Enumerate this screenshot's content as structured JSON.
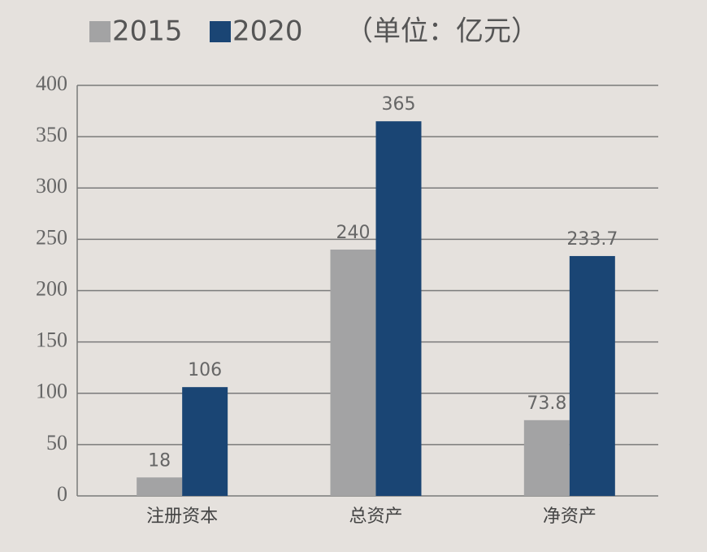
{
  "chart_data": {
    "type": "bar",
    "unit": "（单位：亿元）",
    "categories": [
      "注册资本",
      "总资产",
      "净资产"
    ],
    "series": [
      {
        "name": "2015",
        "color": "#a3a3a4",
        "values": [
          18,
          240,
          73.8
        ]
      },
      {
        "name": "2020",
        "color": "#1a4574",
        "values": [
          106,
          365,
          233.7
        ]
      }
    ],
    "ylim": [
      0,
      400
    ],
    "yticks": [
      0,
      50,
      100,
      150,
      200,
      250,
      300,
      350,
      400
    ],
    "grid": true
  }
}
